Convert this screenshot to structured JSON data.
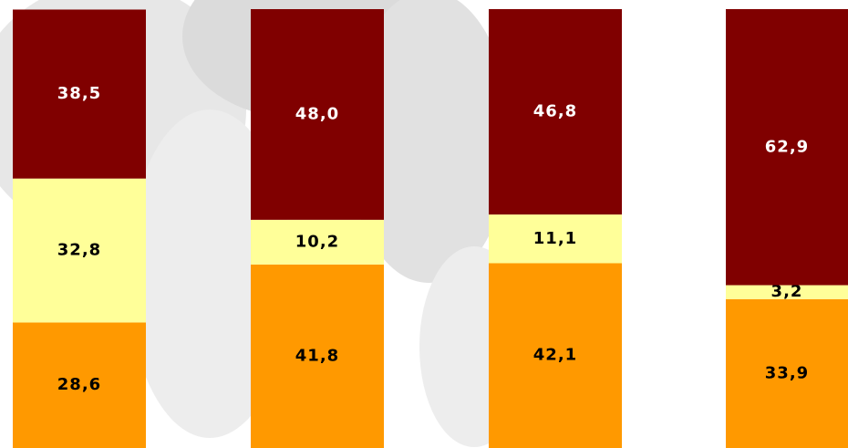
{
  "chart_data": {
    "type": "stacked_bar",
    "categories": [
      null,
      null,
      null,
      null
    ],
    "ylim": [
      0,
      100
    ],
    "series": [
      {
        "color": "#ff9900",
        "label_color": "#000000",
        "values": [
          28.6,
          41.8,
          42.1,
          33.9
        ],
        "value_labels": [
          "28,6",
          "41,8",
          "42,1",
          "33,9"
        ]
      },
      {
        "color": "#ffff99",
        "label_color": "#000000",
        "values": [
          32.8,
          10.2,
          11.1,
          3.2
        ],
        "value_labels": [
          "32,8",
          "10,2",
          "11,1",
          "3,2"
        ]
      },
      {
        "color": "#800000",
        "label_color": "#ffffff",
        "values": [
          38.5,
          48.0,
          46.8,
          62.9
        ],
        "value_labels": [
          "38,5",
          "48,0",
          "46,8",
          "62,9"
        ]
      }
    ]
  }
}
